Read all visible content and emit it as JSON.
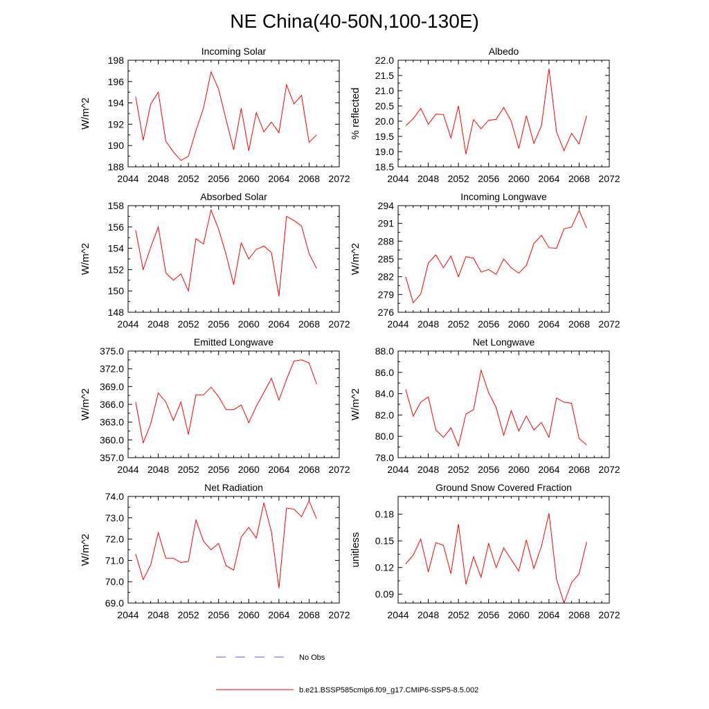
{
  "figure_title": "NE China(40-50N,100-130E)",
  "legend": {
    "obs_label": "No Obs",
    "obs_color": "#5a5ae6",
    "model_label": "b.e21.BSSP585cmip6.f09_g17.CMIP6-SSP5-8.5.002",
    "model_color": "#ff0000"
  },
  "chart_data": [
    {
      "type": "line",
      "title": "Incoming Solar",
      "ylabel": "W/m^2",
      "xlim": [
        2044,
        2072
      ],
      "xticks": [
        2044,
        2048,
        2052,
        2056,
        2060,
        2064,
        2068,
        2072
      ],
      "xtick_labels": [
        "2044",
        "2048",
        "2052",
        "2056",
        "2060",
        "2064",
        "2068",
        "2072"
      ],
      "ylim": [
        188,
        198
      ],
      "yticks": [
        188,
        190,
        192,
        194,
        196,
        198
      ],
      "ytick_labels": [
        "188",
        "190",
        "192",
        "194",
        "196",
        "198"
      ],
      "x": [
        2045,
        2046,
        2047,
        2048,
        2049,
        2050,
        2051,
        2052,
        2053,
        2054,
        2055,
        2056,
        2057,
        2058,
        2059,
        2060,
        2061,
        2062,
        2063,
        2064,
        2065,
        2066,
        2067,
        2068,
        2069
      ],
      "values": [
        194.6,
        190.5,
        193.9,
        195.0,
        190.4,
        189.4,
        188.6,
        189.0,
        191.4,
        193.5,
        196.9,
        195.3,
        192.4,
        189.6,
        193.5,
        189.5,
        193.1,
        191.3,
        192.2,
        191.2,
        195.7,
        193.9,
        194.7,
        190.3,
        191.0
      ]
    },
    {
      "type": "line",
      "title": "Albedo",
      "ylabel": "% reflected",
      "xlim": [
        2044,
        2072
      ],
      "xticks": [
        2044,
        2048,
        2052,
        2056,
        2060,
        2064,
        2068,
        2072
      ],
      "xtick_labels": [
        "2044",
        "2048",
        "2052",
        "2056",
        "2060",
        "2064",
        "2068",
        "2072"
      ],
      "ylim": [
        18.5,
        22.0
      ],
      "yticks": [
        18.5,
        19.0,
        19.5,
        20.0,
        20.5,
        21.0,
        21.5,
        22.0
      ],
      "ytick_labels": [
        "18.5",
        "19.0",
        "19.5",
        "20.0",
        "20.5",
        "21.0",
        "21.5",
        "22.0"
      ],
      "x": [
        2045,
        2046,
        2047,
        2048,
        2049,
        2050,
        2051,
        2052,
        2053,
        2054,
        2055,
        2056,
        2057,
        2058,
        2059,
        2060,
        2061,
        2062,
        2063,
        2064,
        2065,
        2066,
        2067,
        2068,
        2069
      ],
      "values": [
        19.85,
        20.08,
        20.42,
        19.9,
        20.23,
        20.22,
        19.45,
        20.5,
        18.92,
        20.05,
        19.75,
        20.03,
        20.06,
        20.45,
        20.0,
        19.1,
        20.18,
        19.27,
        19.85,
        21.72,
        19.65,
        19.03,
        19.6,
        19.25,
        20.18
      ]
    },
    {
      "type": "line",
      "title": "Absorbed Solar",
      "ylabel": "W/m^2",
      "xlim": [
        2044,
        2072
      ],
      "xticks": [
        2044,
        2048,
        2052,
        2056,
        2060,
        2064,
        2068,
        2072
      ],
      "xtick_labels": [
        "2044",
        "2048",
        "2052",
        "2056",
        "2060",
        "2064",
        "2068",
        "2072"
      ],
      "ylim": [
        148,
        158
      ],
      "yticks": [
        148,
        150,
        152,
        154,
        156,
        158
      ],
      "ytick_labels": [
        "148",
        "150",
        "152",
        "154",
        "156",
        "158"
      ],
      "x": [
        2045,
        2046,
        2047,
        2048,
        2049,
        2050,
        2051,
        2052,
        2053,
        2054,
        2055,
        2056,
        2057,
        2058,
        2059,
        2060,
        2061,
        2062,
        2063,
        2064,
        2065,
        2066,
        2067,
        2068,
        2069
      ],
      "values": [
        155.7,
        152.0,
        154.1,
        156.0,
        151.7,
        151.0,
        151.6,
        150.0,
        154.9,
        154.4,
        157.6,
        155.8,
        153.4,
        150.6,
        154.5,
        153.0,
        153.9,
        154.2,
        153.6,
        149.5,
        157.0,
        156.6,
        156.1,
        153.5,
        152.1
      ]
    },
    {
      "type": "line",
      "title": "Incoming Longwave",
      "ylabel": "W/m^2",
      "xlim": [
        2044,
        2072
      ],
      "xticks": [
        2044,
        2048,
        2052,
        2056,
        2060,
        2064,
        2068,
        2072
      ],
      "xtick_labels": [
        "2044",
        "2048",
        "2052",
        "2056",
        "2060",
        "2064",
        "2068",
        "2072"
      ],
      "ylim": [
        276,
        294
      ],
      "yticks": [
        276,
        279,
        282,
        285,
        288,
        291,
        294
      ],
      "ytick_labels": [
        "276",
        "279",
        "282",
        "285",
        "288",
        "291",
        "294"
      ],
      "x": [
        2045,
        2046,
        2047,
        2048,
        2049,
        2050,
        2051,
        2052,
        2053,
        2054,
        2055,
        2056,
        2057,
        2058,
        2059,
        2060,
        2061,
        2062,
        2063,
        2064,
        2065,
        2066,
        2067,
        2068,
        2069
      ],
      "values": [
        282.0,
        277.6,
        279.1,
        284.3,
        285.7,
        283.5,
        285.5,
        282.0,
        285.4,
        285.1,
        282.8,
        283.2,
        282.4,
        285.0,
        283.5,
        282.6,
        283.9,
        287.6,
        289.0,
        286.9,
        286.8,
        290.1,
        290.4,
        293.2,
        290.2
      ]
    },
    {
      "type": "line",
      "title": "Emitted Longwave",
      "ylabel": "W/m^2",
      "xlim": [
        2044,
        2072
      ],
      "xticks": [
        2044,
        2048,
        2052,
        2056,
        2060,
        2064,
        2068,
        2072
      ],
      "xtick_labels": [
        "2044",
        "2048",
        "2052",
        "2056",
        "2060",
        "2064",
        "2068",
        "2072"
      ],
      "ylim": [
        357,
        375
      ],
      "yticks": [
        357,
        360,
        363,
        366,
        369,
        372,
        375
      ],
      "ytick_labels": [
        "357.0",
        "360.0",
        "363.0",
        "366.0",
        "369.0",
        "372.0",
        "375.0"
      ],
      "x": [
        2045,
        2046,
        2047,
        2048,
        2049,
        2050,
        2051,
        2052,
        2053,
        2054,
        2055,
        2056,
        2057,
        2058,
        2059,
        2060,
        2061,
        2062,
        2063,
        2064,
        2065,
        2066,
        2067,
        2068,
        2069
      ],
      "values": [
        366.4,
        359.5,
        362.7,
        367.9,
        366.4,
        363.3,
        366.4,
        360.9,
        367.6,
        367.6,
        368.9,
        367.3,
        365.1,
        365.1,
        365.9,
        362.9,
        365.7,
        368.0,
        370.4,
        366.7,
        370.2,
        373.3,
        373.5,
        373.0,
        369.4
      ]
    },
    {
      "type": "line",
      "title": "Net Longwave",
      "ylabel": "W/m^2",
      "xlim": [
        2044,
        2072
      ],
      "xticks": [
        2044,
        2048,
        2052,
        2056,
        2060,
        2064,
        2068,
        2072
      ],
      "xtick_labels": [
        "2044",
        "2048",
        "2052",
        "2056",
        "2060",
        "2064",
        "2068",
        "2072"
      ],
      "ylim": [
        78,
        88
      ],
      "yticks": [
        78,
        80,
        82,
        84,
        86,
        88
      ],
      "ytick_labels": [
        "78.0",
        "80.0",
        "82.0",
        "84.0",
        "86.0",
        "88.0"
      ],
      "x": [
        2045,
        2046,
        2047,
        2048,
        2049,
        2050,
        2051,
        2052,
        2053,
        2054,
        2055,
        2056,
        2057,
        2058,
        2059,
        2060,
        2061,
        2062,
        2063,
        2064,
        2065,
        2066,
        2067,
        2068,
        2069
      ],
      "values": [
        84.4,
        81.9,
        83.2,
        83.7,
        80.6,
        79.9,
        80.8,
        79.1,
        82.1,
        82.5,
        86.2,
        84.1,
        82.7,
        80.1,
        82.4,
        80.5,
        81.9,
        80.6,
        81.3,
        79.9,
        83.6,
        83.2,
        83.1,
        79.8,
        79.2
      ]
    },
    {
      "type": "line",
      "title": "Net Radiation",
      "ylabel": "W/m^2",
      "xlim": [
        2044,
        2072
      ],
      "xticks": [
        2044,
        2048,
        2052,
        2056,
        2060,
        2064,
        2068,
        2072
      ],
      "xtick_labels": [
        "2044",
        "2048",
        "2052",
        "2056",
        "2060",
        "2064",
        "2068",
        "2072"
      ],
      "ylim": [
        69,
        74
      ],
      "yticks": [
        69,
        70,
        71,
        72,
        73,
        74
      ],
      "ytick_labels": [
        "69.0",
        "70.0",
        "71.0",
        "72.0",
        "73.0",
        "74.0"
      ],
      "x": [
        2045,
        2046,
        2047,
        2048,
        2049,
        2050,
        2051,
        2052,
        2053,
        2054,
        2055,
        2056,
        2057,
        2058,
        2059,
        2060,
        2061,
        2062,
        2063,
        2064,
        2065,
        2066,
        2067,
        2068,
        2069
      ],
      "values": [
        71.3,
        70.1,
        70.8,
        72.3,
        71.1,
        71.1,
        70.9,
        70.95,
        72.9,
        71.9,
        71.5,
        71.8,
        70.75,
        70.55,
        72.1,
        72.55,
        72.05,
        73.7,
        72.35,
        69.7,
        73.45,
        73.4,
        73.05,
        73.8,
        72.95
      ]
    },
    {
      "type": "line",
      "title": "Ground Snow Covered Fraction",
      "ylabel": "unitless",
      "xlim": [
        2044,
        2072
      ],
      "xticks": [
        2044,
        2048,
        2052,
        2056,
        2060,
        2064,
        2068,
        2072
      ],
      "xtick_labels": [
        "2044",
        "2048",
        "2052",
        "2056",
        "2060",
        "2064",
        "2068",
        "2072"
      ],
      "ylim": [
        0.08,
        0.2
      ],
      "yticks": [
        0.09,
        0.12,
        0.15,
        0.18
      ],
      "ytick_labels": [
        "0.09",
        "0.12",
        "0.15",
        "0.18"
      ],
      "x": [
        2045,
        2046,
        2047,
        2048,
        2049,
        2050,
        2051,
        2052,
        2053,
        2054,
        2055,
        2056,
        2057,
        2058,
        2059,
        2060,
        2061,
        2062,
        2063,
        2064,
        2065,
        2066,
        2067,
        2068,
        2069
      ],
      "values": [
        0.124,
        0.134,
        0.152,
        0.115,
        0.148,
        0.145,
        0.113,
        0.169,
        0.101,
        0.132,
        0.109,
        0.147,
        0.12,
        0.142,
        0.129,
        0.116,
        0.151,
        0.119,
        0.144,
        0.181,
        0.107,
        0.08,
        0.103,
        0.113,
        0.149
      ]
    }
  ]
}
